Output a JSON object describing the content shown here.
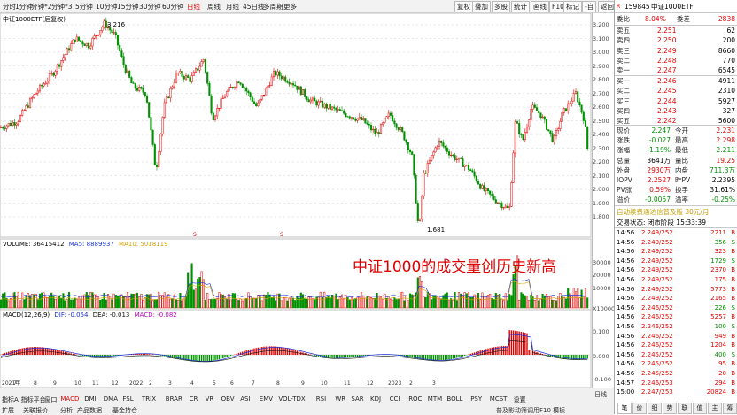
{
  "toolbar": {
    "periods": [
      "分时",
      "1分钟",
      "分钟*2",
      "分钟*3",
      "5分钟",
      "10分钟",
      "15分钟",
      "30分钟",
      "60分钟",
      "日线",
      "周线",
      "月线",
      "45日线",
      "多周期",
      "更多"
    ],
    "active_period": "日线",
    "right_buttons": [
      "复权",
      "叠加",
      "多股",
      "统计",
      "画线",
      "F10",
      "标记",
      "-自",
      "返回"
    ]
  },
  "chart": {
    "title": "中证1000ETF(后复权)",
    "high_label": "3.216",
    "low_label": "1.681",
    "annotation": "中证1000的成交量创历史新高",
    "price_axis": [
      "3.200",
      "3.100",
      "3.000",
      "2.900",
      "2.800",
      "2.700",
      "2.600",
      "2.500",
      "2.400",
      "2.300",
      "2.200",
      "2.100",
      "2.000",
      "1.900",
      "1.800"
    ],
    "volume_label": "VOLUME: 36415412",
    "ma5_label": "MA5: 8889937",
    "ma10_label": "MA10: 5018119",
    "volume_axis": [
      "30000",
      "20000",
      "10000",
      "X10000"
    ],
    "macd_label": "MACD(12,26,9)",
    "dif_label": "DIF: -0.054",
    "dea_label": "DEA: -0.013",
    "macd_value_label": "MACD: -0.082",
    "macd_axis": [
      "0.100",
      "0.000",
      "-0.100"
    ],
    "date_axis": [
      "2021年",
      "7",
      "8",
      "9",
      "10",
      "11",
      "12",
      "2022",
      "2",
      "3",
      "4",
      "5",
      "6",
      "7",
      "8",
      "9",
      "10",
      "11",
      "12",
      "2023",
      "2",
      "3"
    ],
    "s_markers": [
      "S",
      "S",
      "S"
    ]
  },
  "bottom_tabs": {
    "row1": [
      "指标A",
      "指标平台",
      "窗口",
      "MACD",
      "DMI",
      "DMA",
      "FSL",
      "TRIX",
      "BRAR",
      "CR",
      "VR",
      "OBV",
      "ASI",
      "EMV",
      "VOL-TDX",
      "RSI",
      "WR",
      "SAR",
      "KDJ",
      "CCI",
      "ROC",
      "MTM",
      "BOLL",
      "PSY",
      "MCST",
      "设置"
    ],
    "row2": [
      "扩展",
      "关联报价",
      "分析",
      "产品数据",
      "基金持仓"
    ],
    "row2_right": "普及影动筛调用F10 模板",
    "tail_label": "日线",
    "active_tab": "MACD"
  },
  "quote": {
    "code": "159845",
    "name": "中证1000ETF",
    "weibi_label": "委比",
    "weibi": "8.04%",
    "weicha_label": "委差",
    "weicha": "2838",
    "asks": [
      {
        "label": "卖五",
        "price": "2.251",
        "vol": "62"
      },
      {
        "label": "卖四",
        "price": "2.250",
        "vol": "200"
      },
      {
        "label": "卖三",
        "price": "2.249",
        "vol": "8660"
      },
      {
        "label": "卖二",
        "price": "2.248",
        "vol": "770"
      },
      {
        "label": "卖一",
        "price": "2.247",
        "vol": "6545"
      }
    ],
    "bids": [
      {
        "label": "买一",
        "price": "2.246",
        "vol": "4911"
      },
      {
        "label": "买二",
        "price": "2.245",
        "vol": "2310"
      },
      {
        "label": "买三",
        "price": "2.244",
        "vol": "5927"
      },
      {
        "label": "买四",
        "price": "2.243",
        "vol": "327"
      },
      {
        "label": "买五",
        "price": "2.242",
        "vol": "5600"
      }
    ],
    "stats": [
      {
        "l1": "现价",
        "v1": "2.247",
        "l2": "今开",
        "v2": "2.231",
        "c1": "green",
        "c2": "red"
      },
      {
        "l1": "涨跌",
        "v1": "-0.027",
        "l2": "最高",
        "v2": "2.298",
        "c1": "green",
        "c2": "red"
      },
      {
        "l1": "涨幅",
        "v1": "-1.19%",
        "l2": "最低",
        "v2": "2.211",
        "c1": "green",
        "c2": "green"
      },
      {
        "l1": "总量",
        "v1": "3641万",
        "l2": "量比",
        "v2": "19.25",
        "c1": "black",
        "c2": "red"
      },
      {
        "l1": "外盘",
        "v1": "2930万",
        "l2": "内盘",
        "v2": "711.3万",
        "c1": "red",
        "c2": "green"
      },
      {
        "l1": "IOPV",
        "v1": "2.2527",
        "l2": "昨PV",
        "v2": "2.2395",
        "c1": "red",
        "c2": "black"
      },
      {
        "l1": "PV涨",
        "v1": "0.59%",
        "l2": "换手",
        "v2": "31.61%",
        "c1": "red",
        "c2": "black"
      },
      {
        "l1": "溢价",
        "v1": "-0.0057",
        "l2": "溢率",
        "v2": "-0.25%",
        "c1": "green",
        "c2": "green"
      }
    ],
    "promo": "自动续费通达信普及版 30元/月",
    "trade_status": "交易状态: 闭市阶段 15:33:39",
    "ticks": [
      {
        "t": "14:56",
        "p": "2.249/252",
        "v": "2211",
        "d": "B"
      },
      {
        "t": "14:56",
        "p": "2.249/252",
        "v": "356",
        "d": "S"
      },
      {
        "t": "14:56",
        "p": "2.249/252",
        "v": "323",
        "d": "B"
      },
      {
        "t": "14:56",
        "p": "2.249/252",
        "v": "1729",
        "d": "S"
      },
      {
        "t": "14:56",
        "p": "2.249/252",
        "v": "2370",
        "d": "B"
      },
      {
        "t": "14:56",
        "p": "2.249/252",
        "v": "175",
        "d": "B"
      },
      {
        "t": "14:56",
        "p": "2.249/252",
        "v": "5773",
        "d": "B"
      },
      {
        "t": "14:56",
        "p": "2.249/252",
        "v": "2165",
        "d": "B"
      },
      {
        "t": "14:56",
        "p": "2.246/252",
        "v": "226",
        "d": "S"
      },
      {
        "t": "14:56",
        "p": "2.246/252",
        "v": "5257",
        "d": "B"
      },
      {
        "t": "14:56",
        "p": "2.246/252",
        "v": "100",
        "d": "S"
      },
      {
        "t": "14:56",
        "p": "2.246/252",
        "v": "949",
        "d": "B"
      },
      {
        "t": "14:56",
        "p": "2.246/252",
        "v": "1204",
        "d": "B"
      },
      {
        "t": "14:56",
        "p": "2.245/252",
        "v": "400",
        "d": "S"
      },
      {
        "t": "14:56",
        "p": "2.245/252",
        "v": "95",
        "d": "B"
      },
      {
        "t": "14:56",
        "p": "2.245/252",
        "v": "20",
        "d": "B"
      },
      {
        "t": "14:57",
        "p": "2.246/253",
        "v": "294",
        "d": "B"
      },
      {
        "t": "15:00",
        "p": "2.247/253",
        "v": "20824",
        "d": "B"
      }
    ],
    "footer_tabs": [
      "笔",
      "价",
      "细",
      "势",
      "联",
      "值",
      "主",
      "筹"
    ],
    "footer_active": "笔"
  },
  "colors": {
    "up": "#e10000",
    "down": "#009000",
    "ma5": "#1a2fd6",
    "ma10": "#d4a000",
    "dif": "#1a2fd6",
    "dea": "#111111"
  }
}
